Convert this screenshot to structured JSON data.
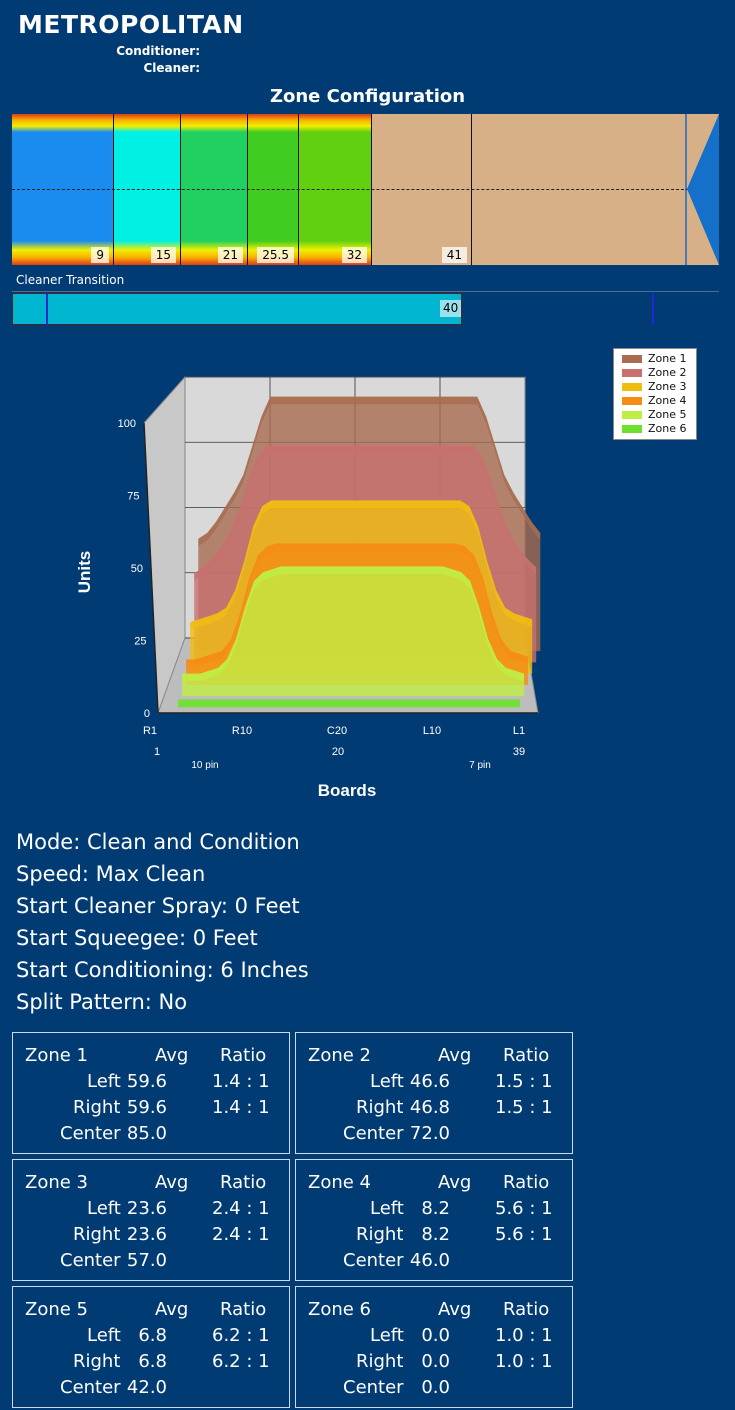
{
  "header": {
    "title": "METROPOLITAN",
    "conditioner_label": "Conditioner:",
    "cleaner_label": "Cleaner:"
  },
  "zone_config": {
    "title": "Zone Configuration",
    "zones": [
      {
        "label": "9",
        "color": "#1a8cf0"
      },
      {
        "label": "15",
        "color": "#00f0e6"
      },
      {
        "label": "21",
        "color": "#20d060"
      },
      {
        "label": "25.5",
        "color": "#40cc20"
      },
      {
        "label": "32",
        "color": "#60d010"
      },
      {
        "label": "41",
        "color": "#d8b088"
      }
    ],
    "oil_color": "#d8b088"
  },
  "cleaner_transition": {
    "label": "Cleaner Transition",
    "value": "40",
    "bar_color": "#00b5d0"
  },
  "chart_data": {
    "type": "area",
    "style": "3d",
    "xlabel": "Boards",
    "ylabel": "Units",
    "ylim": [
      0,
      100
    ],
    "yticks": [
      0,
      25,
      50,
      75,
      100
    ],
    "x_ticks_top": [
      "R1",
      "R10",
      "C20",
      "L10",
      "L1"
    ],
    "x_ticks_bottom": [
      "1",
      "20",
      "39"
    ],
    "x_annotations": [
      "10 pin",
      "7 pin"
    ],
    "legend_position": "top-right",
    "x": [
      1,
      2,
      3,
      4,
      5,
      6,
      7,
      8,
      9,
      10,
      11,
      12,
      13,
      14,
      15,
      16,
      17,
      18,
      19,
      20,
      21,
      22,
      23,
      24,
      25,
      26,
      27,
      28,
      29,
      30,
      31,
      32,
      33,
      34,
      35,
      36,
      37,
      38,
      39
    ],
    "series": [
      {
        "name": "Zone 1",
        "color": "#a86c50",
        "values": [
          36,
          38,
          42,
          47,
          52,
          58,
          68,
          78,
          85,
          85,
          85,
          85,
          85,
          85,
          85,
          85,
          85,
          85,
          85,
          85,
          85,
          85,
          85,
          85,
          85,
          85,
          85,
          85,
          85,
          85,
          85,
          85,
          78,
          68,
          58,
          52,
          47,
          42,
          38
        ]
      },
      {
        "name": "Zone 2",
        "color": "#c87070",
        "values": [
          28,
          30,
          33,
          37,
          42,
          50,
          60,
          68,
          72,
          72,
          72,
          72,
          72,
          72,
          72,
          72,
          72,
          72,
          72,
          72,
          72,
          72,
          72,
          72,
          72,
          72,
          72,
          72,
          72,
          72,
          72,
          72,
          68,
          60,
          50,
          42,
          37,
          33,
          30
        ]
      },
      {
        "name": "Zone 3",
        "color": "#f0be10",
        "values": [
          15,
          16,
          17,
          18,
          20,
          26,
          36,
          48,
          55,
          57,
          57,
          57,
          57,
          57,
          57,
          57,
          57,
          57,
          57,
          57,
          57,
          57,
          57,
          57,
          57,
          57,
          57,
          57,
          57,
          57,
          57,
          55,
          48,
          36,
          26,
          20,
          18,
          17,
          16
        ]
      },
      {
        "name": "Zone 4",
        "color": "#f58c14",
        "values": [
          6,
          6,
          7,
          8,
          9,
          13,
          22,
          34,
          42,
          45,
          46,
          46,
          46,
          46,
          46,
          46,
          46,
          46,
          46,
          46,
          46,
          46,
          46,
          46,
          46,
          46,
          46,
          46,
          46,
          46,
          46,
          45,
          42,
          34,
          22,
          13,
          9,
          8,
          7
        ]
      },
      {
        "name": "Zone 5",
        "color": "#c0ee44",
        "values": [
          5,
          5,
          5,
          6,
          7,
          10,
          17,
          28,
          37,
          40,
          41,
          42,
          42,
          42,
          42,
          42,
          42,
          42,
          42,
          42,
          42,
          42,
          42,
          42,
          42,
          42,
          42,
          42,
          42,
          42,
          41,
          40,
          37,
          28,
          17,
          10,
          7,
          6,
          5
        ]
      },
      {
        "name": "Zone 6",
        "color": "#70e030",
        "values": [
          0,
          0,
          0,
          0,
          0,
          0,
          0,
          0,
          0,
          0,
          0,
          0,
          0,
          0,
          0,
          0,
          0,
          0,
          0,
          0,
          0,
          0,
          0,
          0,
          0,
          0,
          0,
          0,
          0,
          0,
          0,
          0,
          0,
          0,
          0,
          0,
          0,
          0,
          0
        ]
      }
    ]
  },
  "info": {
    "mode": "Mode: Clean and Condition",
    "speed": "Speed: Max Clean",
    "start_cleaner_spray": "Start Cleaner Spray: 0 Feet",
    "start_squeegee": "Start Squeegee: 0 Feet",
    "start_conditioning": "Start Conditioning: 6 Inches",
    "split_pattern": "Split Pattern: No"
  },
  "zone_table": {
    "avg_header": "Avg",
    "ratio_header": "Ratio",
    "left_label": "Left",
    "right_label": "Right",
    "center_label": "Center",
    "zones": [
      {
        "name": "Zone 1",
        "left_avg": "59.6",
        "left_ratio": "1.4 : 1",
        "right_avg": "59.6",
        "right_ratio": "1.4 : 1",
        "center": "85.0"
      },
      {
        "name": "Zone 2",
        "left_avg": "46.6",
        "left_ratio": "1.5 : 1",
        "right_avg": "46.8",
        "right_ratio": "1.5 : 1",
        "center": "72.0"
      },
      {
        "name": "Zone 3",
        "left_avg": "23.6",
        "left_ratio": "2.4 : 1",
        "right_avg": "23.6",
        "right_ratio": "2.4 : 1",
        "center": "57.0"
      },
      {
        "name": "Zone 4",
        "left_avg": "8.2",
        "left_ratio": "5.6 : 1",
        "right_avg": "8.2",
        "right_ratio": "5.6 : 1",
        "center": "46.0"
      },
      {
        "name": "Zone 5",
        "left_avg": "6.8",
        "left_ratio": "6.2 : 1",
        "right_avg": "6.8",
        "right_ratio": "6.2 : 1",
        "center": "42.0"
      },
      {
        "name": "Zone 6",
        "left_avg": "0.0",
        "left_ratio": "1.0 : 1",
        "right_avg": "0.0",
        "right_ratio": "1.0 : 1",
        "center": "0.0"
      }
    ]
  }
}
